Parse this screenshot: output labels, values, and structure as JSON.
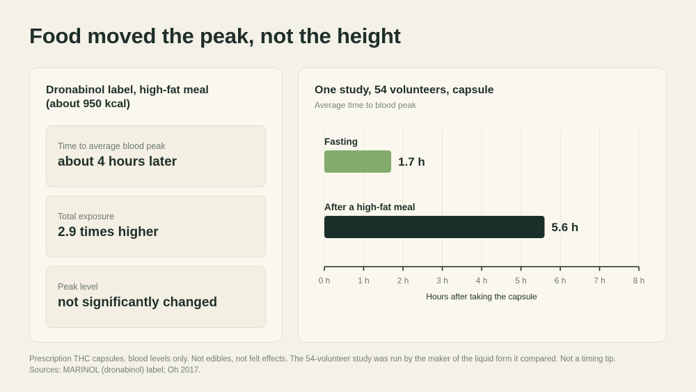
{
  "page": {
    "title": "Food moved the peak, not the height"
  },
  "left_card": {
    "heading_line1": "Dronabinol label, high-fat meal",
    "heading_line2": "(about 950 kcal)",
    "stats": [
      {
        "label": "Time to average blood peak",
        "value": "about 4 hours later"
      },
      {
        "label": "Total exposure",
        "value": "2.9 times higher"
      },
      {
        "label": "Peak level",
        "value": "not significantly changed"
      }
    ]
  },
  "right_card": {
    "heading": "One study, 54 volunteers, capsule",
    "subheading": "Average time to blood peak"
  },
  "chart_data": {
    "type": "bar",
    "orientation": "horizontal",
    "categories": [
      "Fasting",
      "After a high-fat meal"
    ],
    "values": [
      1.7,
      5.6
    ],
    "value_labels": [
      "1.7 h",
      "5.6 h"
    ],
    "colors": [
      "#82ab6c",
      "#1c2e29"
    ],
    "xlabel": "Hours after taking the capsule",
    "xlim": [
      0,
      8
    ],
    "ticks": [
      0,
      1,
      2,
      3,
      4,
      5,
      6,
      7,
      8
    ],
    "tick_labels": [
      "0 h",
      "1 h",
      "2 h",
      "3 h",
      "4 h",
      "5 h",
      "6 h",
      "7 h",
      "8 h"
    ],
    "grid": true
  },
  "footer": {
    "line1": "Prescription THC capsules, blood levels only. Not edibles, not felt effects. The 54-volunteer study was run by the maker of the liquid form it compared. Not a timing tip.",
    "line2": "Sources: MARINOL (dronabinol) label; Oh 2017."
  }
}
